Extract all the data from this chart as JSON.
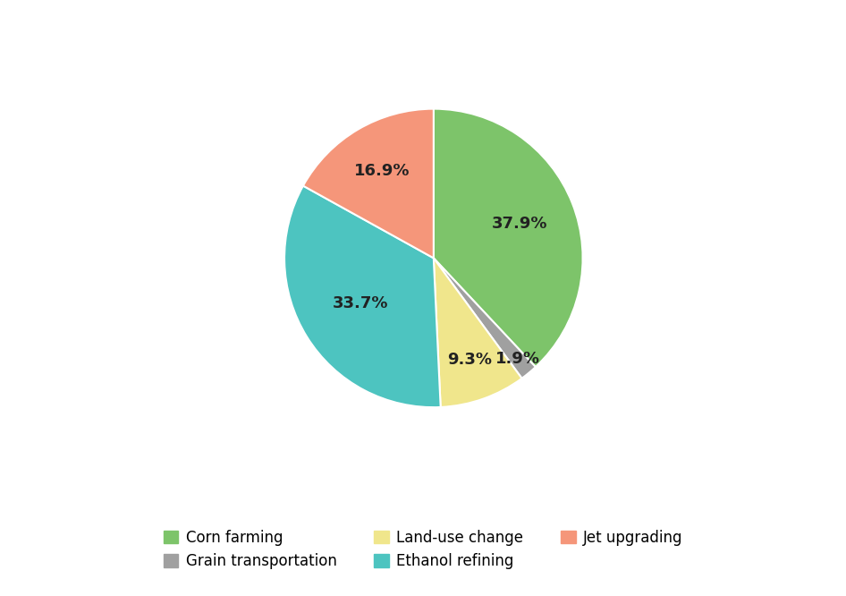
{
  "labels": [
    "Corn farming",
    "Grain transportation",
    "Land-use change",
    "Ethanol refining",
    "Jet upgrading"
  ],
  "values": [
    37.9,
    1.9,
    9.3,
    33.7,
    16.9
  ],
  "colors": [
    "#7DC46A",
    "#A0A0A0",
    "#F0E68C",
    "#4DC4C0",
    "#F5967A"
  ],
  "startangle": 90,
  "pct_labels": [
    "37.9%",
    "1.9%",
    "9.3%",
    "33.7%",
    "16.9%"
  ],
  "legend_row1": [
    0,
    1,
    2
  ],
  "legend_row2": [
    3,
    4
  ],
  "figsize": [
    9.46,
    6.66
  ],
  "dpi": 100,
  "background_color": "#ffffff",
  "pct_fontsize": 13,
  "legend_fontsize": 12
}
